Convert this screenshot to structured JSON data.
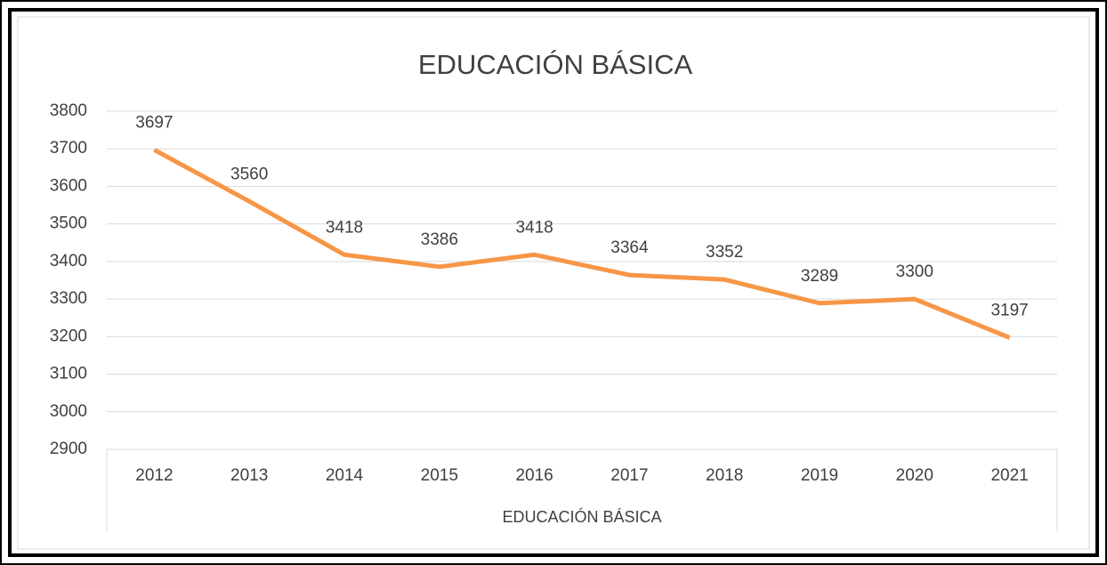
{
  "chart_data": {
    "type": "line",
    "title": "EDUCACIÓN BÁSICA",
    "x_label": "EDUCACIÓN BÁSICA",
    "categories": [
      "2012",
      "2013",
      "2014",
      "2015",
      "2016",
      "2017",
      "2018",
      "2019",
      "2020",
      "2021"
    ],
    "series": [
      {
        "name": "EDUCACIÓN BÁSICA",
        "color": "#f79646",
        "values": [
          3697,
          3560,
          3418,
          3386,
          3418,
          3364,
          3352,
          3289,
          3300,
          3197
        ]
      }
    ],
    "ylim": [
      2900,
      3800
    ],
    "yticks": [
      2900,
      3000,
      3100,
      3200,
      3300,
      3400,
      3500,
      3600,
      3700,
      3800
    ],
    "grid": true,
    "data_labels": true
  }
}
